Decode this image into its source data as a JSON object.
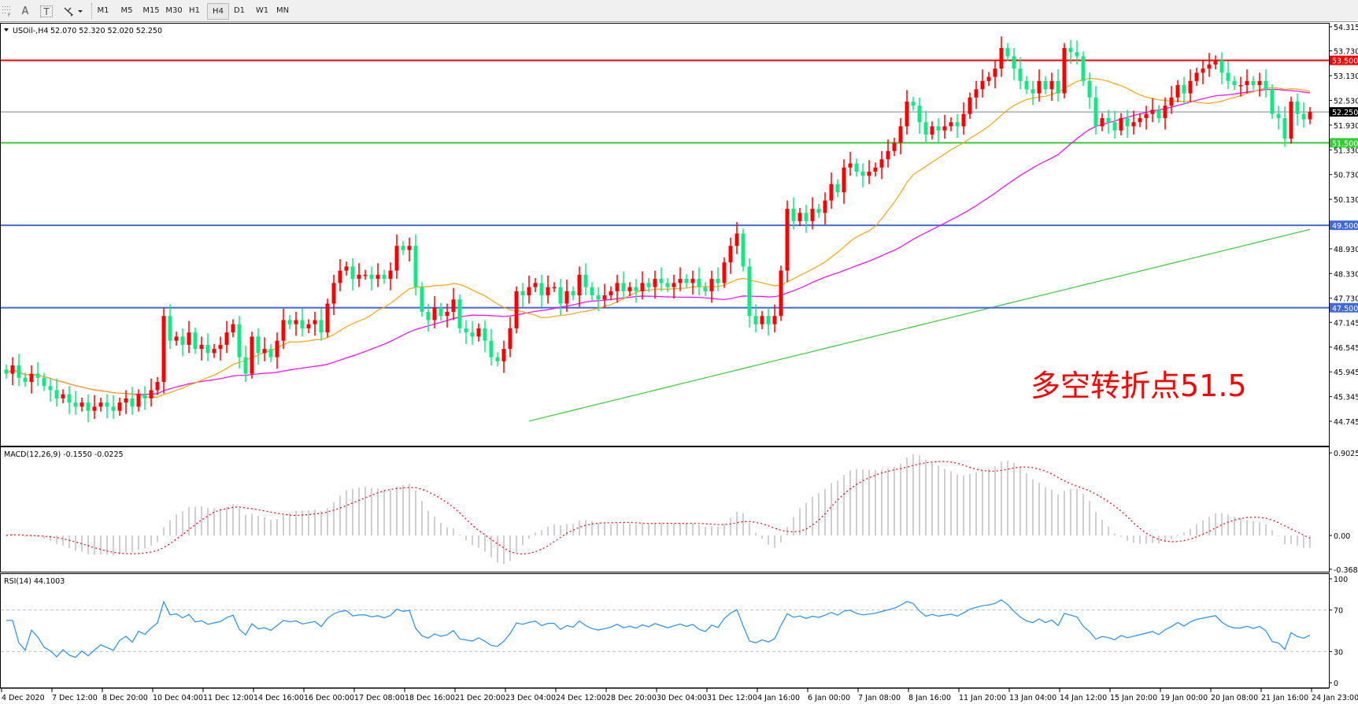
{
  "toolbar": {
    "tools": [
      {
        "name": "period-separator-icon"
      },
      {
        "name": "text-tool",
        "label": "A"
      },
      {
        "name": "text-label-tool",
        "label": "T"
      },
      {
        "name": "arrows-tool-icon"
      }
    ],
    "timeframes": [
      "M1",
      "M5",
      "M15",
      "M30",
      "H1",
      "H4",
      "D1",
      "W1",
      "MN"
    ],
    "active_timeframe": "H4"
  },
  "chart_data": {
    "type": "candlestick",
    "symbol_label": "USOil-,H4",
    "ohlc_label": "52.070 52.320 52.020 52.250",
    "price_ticks": [
      "54.315",
      "53.730",
      "53.130",
      "52.530",
      "51.930",
      "51.330",
      "50.730",
      "50.130",
      "48.930",
      "48.330",
      "47.730",
      "47.145",
      "46.545",
      "45.945",
      "45.345",
      "44.745"
    ],
    "ylim": [
      44.745,
      54.315
    ],
    "time_labels": [
      "4 Dec 2020",
      "7 Dec 12:00",
      "8 Dec 20:00",
      "10 Dec 04:00",
      "11 Dec 12:00",
      "14 Dec 16:00",
      "16 Dec 00:00",
      "17 Dec 08:00",
      "18 Dec 16:00",
      "21 Dec 20:00",
      "23 Dec 04:00",
      "24 Dec 12:00",
      "28 Dec 20:00",
      "30 Dec 04:00",
      "31 Dec 12:00",
      "4 Jan 16:00",
      "6 Jan 00:00",
      "7 Jan 08:00",
      "8 Jan 16:00",
      "11 Jan 20:00",
      "13 Jan 04:00",
      "14 Jan 12:00",
      "15 Jan 20:00",
      "19 Jan 00:00",
      "20 Jan 08:00",
      "21 Jan 16:00",
      "24 Jan 23:00"
    ],
    "candles": {
      "first_open": 46.0,
      "close": [
        45.9,
        46.1,
        45.8,
        45.7,
        45.9,
        45.8,
        45.6,
        45.5,
        45.3,
        45.4,
        45.2,
        45.1,
        45.2,
        45.0,
        45.1,
        45.2,
        45.1,
        45.0,
        45.2,
        45.3,
        45.1,
        45.4,
        45.3,
        45.5,
        45.7,
        47.3,
        46.7,
        46.8,
        46.6,
        46.9,
        46.5,
        46.6,
        46.4,
        46.5,
        46.6,
        46.9,
        47.1,
        46.3,
        45.9,
        46.8,
        46.4,
        46.5,
        46.3,
        46.7,
        47.2,
        47.1,
        47.2,
        47.0,
        47.1,
        47.2,
        46.9,
        47.6,
        48.1,
        48.4,
        48.5,
        48.2,
        48.3,
        48.3,
        48.2,
        48.3,
        48.2,
        48.4,
        49.0,
        48.9,
        49.0,
        48.0,
        47.4,
        47.2,
        47.5,
        47.3,
        47.4,
        47.7,
        47.0,
        46.9,
        46.8,
        47.0,
        46.7,
        46.3,
        46.2,
        46.5,
        47.0,
        47.9,
        47.8,
        48.0,
        48.1,
        47.8,
        48.0,
        48.0,
        47.6,
        47.9,
        47.8,
        48.3,
        48.0,
        47.8,
        47.7,
        47.8,
        47.9,
        48.1,
        47.9,
        48.0,
        47.9,
        48.1,
        48.0,
        48.2,
        48.1,
        48.0,
        48.1,
        48.2,
        48.1,
        48.2,
        48.0,
        47.9,
        48.2,
        48.1,
        48.6,
        49.0,
        49.3,
        48.5,
        47.3,
        47.1,
        47.3,
        47.1,
        47.3,
        48.4,
        49.9,
        49.6,
        49.8,
        49.6,
        49.9,
        49.8,
        50.1,
        50.5,
        50.3,
        50.9,
        51.0,
        50.8,
        50.7,
        50.8,
        50.9,
        51.1,
        51.3,
        51.5,
        51.9,
        52.5,
        52.4,
        52.0,
        51.7,
        51.9,
        51.8,
        51.9,
        52.0,
        51.9,
        52.2,
        52.6,
        52.8,
        53.0,
        53.1,
        53.3,
        53.8,
        53.6,
        53.3,
        53.0,
        52.8,
        52.7,
        53.0,
        52.8,
        53.0,
        52.7,
        53.8,
        53.7,
        53.6,
        53.0,
        52.6,
        51.9,
        52.1,
        52.0,
        51.8,
        52.1,
        51.9,
        52.0,
        52.1,
        52.2,
        52.3,
        52.1,
        52.4,
        52.6,
        52.9,
        52.7,
        53.0,
        53.2,
        53.3,
        53.4,
        53.5,
        53.2,
        53.0,
        52.9,
        52.9,
        53.0,
        52.9,
        53.0,
        52.8,
        52.2,
        52.1,
        51.6,
        52.5,
        52.2,
        52.07,
        52.25
      ]
    },
    "colors": {
      "bull": "#ff0000",
      "bear": "#12e886",
      "ma_fast": "#ffa500",
      "ma_mid": "#ff00ff",
      "ma_slow": "#32cd32"
    },
    "ma_fast_period": 21,
    "ma_mid_period": 50,
    "ma_slow_points": [
      [
        83,
        44.75
      ],
      [
        207,
        49.4
      ]
    ],
    "levels": [
      {
        "price": 53.5,
        "label": "53.500",
        "color": "#ff0000"
      },
      {
        "price": 51.5,
        "label": "51.500",
        "color": "#32cd32"
      },
      {
        "price": 49.5,
        "label": "49.500",
        "color": "#4169e1"
      },
      {
        "price": 47.5,
        "label": "47.500",
        "color": "#4169e1"
      }
    ],
    "current_price": {
      "price": 52.25,
      "label": "52.250",
      "color": "#778899"
    },
    "annotation": {
      "text": "多空转折点51.5",
      "color": "#ff0000"
    },
    "macd": {
      "label": "MACD(12,26,9) -0.1550 -0.0225",
      "ticks": [
        "0.9025",
        "0.00",
        "-0.3688"
      ],
      "range": [
        -0.3688,
        0.9025
      ],
      "hist_color": "#c0c0c0",
      "signal_color": "#ff0000"
    },
    "rsi": {
      "label": "RSI(14) 44.1003",
      "ticks": [
        "100",
        "70",
        "30",
        "0"
      ],
      "levels": [
        70,
        30
      ],
      "color": "#1e90ff"
    }
  }
}
